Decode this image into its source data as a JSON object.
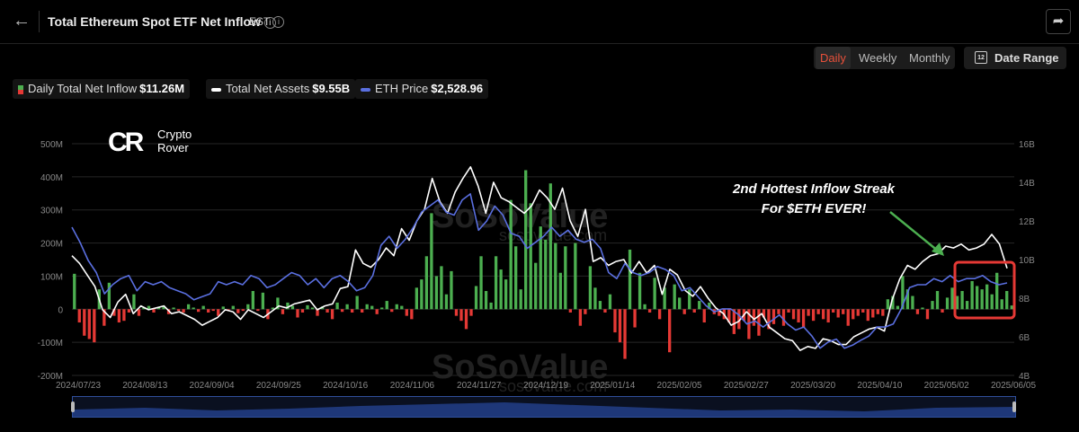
{
  "header": {
    "title": "Total Ethereum Spot ETF Net Inflow",
    "timezone": "EST",
    "back_icon": "arrow-left-icon",
    "share_icon": "share-icon"
  },
  "controls": {
    "periods": [
      "Daily",
      "Weekly",
      "Monthly"
    ],
    "active_period": "Daily",
    "date_range_label": "Date Range"
  },
  "legend": [
    {
      "label": "Daily Total Net Inflow",
      "value": "$11.26M"
    },
    {
      "label": "Total Net Assets",
      "value": "$9.55B"
    },
    {
      "label": "ETH Price",
      "value": "$2,528.96"
    }
  ],
  "logo": {
    "line1": "Crypto",
    "line2": "Rover"
  },
  "watermark": {
    "brand": "SoSoValue",
    "url": "sosovalue.com"
  },
  "annotation": {
    "line1": "2nd Hottest Inflow Streak",
    "line2": "For $ETH EVER!"
  },
  "colors": {
    "inflow_positive": "#4caf50",
    "inflow_negative": "#e53935",
    "assets_line": "#ffffff",
    "price_line": "#5a6fe0",
    "highlight_box": "#e53935",
    "arrow": "#4caf50",
    "active_tab": "#e8503a"
  },
  "chart_data": {
    "type": "bar+line",
    "x_tick_labels": [
      "2024/07/23",
      "2024/08/13",
      "2024/09/04",
      "2024/09/25",
      "2024/10/16",
      "2024/11/06",
      "2024/11/27",
      "2024/12/19",
      "2025/01/14",
      "2025/02/05",
      "2025/02/27",
      "2025/03/20",
      "2025/04/10",
      "2025/05/02",
      "2025/06/05"
    ],
    "y_left_ticks": [
      "500M",
      "400M",
      "300M",
      "200M",
      "100M",
      "0",
      "-100M",
      "-200M"
    ],
    "y_left_range": [
      -200,
      500
    ],
    "y_right_ticks": [
      "16B",
      "14B",
      "12B",
      "10B",
      "8B",
      "6B",
      "4B"
    ],
    "y_right_range": [
      4,
      16
    ],
    "series": [
      {
        "name": "Daily Total Net Inflow",
        "type": "bar",
        "unit": "M USD",
        "values": [
          107,
          -40,
          -80,
          -90,
          -100,
          60,
          -50,
          80,
          -20,
          -40,
          -35,
          -10,
          45,
          -20,
          5,
          10,
          -10,
          5,
          10,
          -15,
          5,
          -5,
          -10,
          15,
          5,
          -8,
          10,
          -10,
          -5,
          -20,
          8,
          -5,
          10,
          -12,
          -5,
          15,
          55,
          -5,
          50,
          -30,
          5,
          35,
          -15,
          20,
          10,
          -25,
          -10,
          12,
          5,
          -20,
          8,
          -10,
          -30,
          20,
          -8,
          15,
          -10,
          40,
          -10,
          15,
          10,
          -15,
          5,
          25,
          -8,
          15,
          10,
          -20,
          -30,
          65,
          90,
          160,
          290,
          100,
          130,
          45,
          115,
          -20,
          -35,
          -60,
          -20,
          70,
          160,
          55,
          20,
          160,
          120,
          90,
          330,
          190,
          60,
          420,
          320,
          140,
          250,
          210,
          380,
          200,
          110,
          190,
          -10,
          200,
          -50,
          -15,
          130,
          65,
          25,
          -10,
          45,
          -70,
          -100,
          -150,
          180,
          -55,
          110,
          15,
          -10,
          95,
          -30,
          65,
          -130,
          75,
          35,
          -15,
          60,
          -10,
          25,
          -40,
          20,
          -15,
          -20,
          -30,
          -40,
          -75,
          -60,
          -35,
          -90,
          -50,
          -80,
          -25,
          -60,
          -45,
          -15,
          -50,
          -10,
          -30,
          -40,
          -55,
          -20,
          -35,
          -15,
          -30,
          -40,
          -10,
          -25,
          -15,
          -50,
          -30,
          -20,
          -10,
          -35,
          -25,
          -15,
          -20,
          30,
          40,
          10,
          100,
          60,
          40,
          -15,
          5,
          -30,
          25,
          55,
          -10,
          35,
          65,
          40,
          55,
          25,
          85,
          70,
          60,
          75,
          45,
          110,
          30,
          55,
          11.26
        ]
      },
      {
        "name": "Total Net Assets",
        "type": "line",
        "unit": "B USD",
        "values": [
          10.2,
          9.8,
          9.2,
          8.6,
          7.4,
          7.0,
          7.8,
          8.2,
          7.2,
          7.6,
          7.4,
          7.5,
          7.6,
          7.2,
          7.3,
          7.1,
          6.9,
          6.6,
          6.8,
          7.0,
          7.4,
          7.3,
          6.9,
          7.4,
          7.2,
          7.0,
          7.3,
          7.6,
          7.5,
          7.7,
          7.8,
          7.9,
          7.4,
          7.6,
          7.7,
          8.5,
          8.6,
          10.5,
          9.8,
          9.6,
          10.0,
          10.6,
          10.2,
          11.6,
          11.0,
          12.0,
          12.6,
          14.2,
          13.0,
          12.4,
          13.5,
          14.2,
          14.8,
          13.8,
          12.4,
          14.0,
          13.2,
          13.0,
          12.7,
          12.4,
          12.8,
          13.6,
          13.2,
          12.6,
          13.7,
          12.0,
          11.2,
          12.6,
          9.9,
          10.1,
          9.7,
          9.9,
          10.0,
          9.3,
          9.9,
          9.3,
          9.7,
          8.2,
          9.5,
          9.2,
          8.4,
          8.1,
          8.6,
          8.0,
          7.5,
          7.2,
          6.6,
          6.8,
          7.3,
          6.9,
          7.2,
          6.5,
          6.2,
          5.9,
          5.8,
          5.3,
          5.5,
          5.4,
          5.9,
          5.8,
          5.6,
          5.6,
          6.0,
          6.2,
          6.4,
          6.5,
          6.3,
          7.9,
          9.0,
          9.7,
          9.5,
          9.9,
          10.2,
          10.3,
          10.7,
          10.6,
          10.8,
          10.5,
          10.6,
          10.8,
          11.3,
          10.8,
          9.55
        ]
      },
      {
        "name": "ETH Price",
        "type": "line",
        "unit": "USD",
        "values": [
          3450,
          3200,
          2900,
          2700,
          2350,
          2500,
          2600,
          2650,
          2400,
          2550,
          2500,
          2550,
          2450,
          2400,
          2350,
          2250,
          2300,
          2350,
          2550,
          2500,
          2550,
          2500,
          2650,
          2600,
          2450,
          2500,
          2600,
          2700,
          2650,
          2500,
          2600,
          2450,
          2600,
          2650,
          2550,
          2400,
          2450,
          2650,
          3150,
          3300,
          3100,
          3250,
          3450,
          3700,
          3800,
          3900,
          3700,
          3650,
          3900,
          4000,
          3400,
          3550,
          3800,
          3650,
          3350,
          3300,
          3100,
          3200,
          3300,
          3450,
          3300,
          3400,
          3250,
          3200,
          3250,
          3100,
          2700,
          2600,
          2850,
          2700,
          2650,
          2700,
          2800,
          2750,
          2650,
          2400,
          2450,
          2300,
          2150,
          2050,
          2100,
          2100,
          2000,
          1850,
          1900,
          1800,
          1900,
          2000,
          1850,
          1750,
          1800,
          1650,
          1450,
          1550,
          1600,
          1450,
          1500,
          1580,
          1650,
          1800,
          1800,
          1850,
          2100,
          2450,
          2500,
          2500,
          2600,
          2550,
          2650,
          2550,
          2600,
          2600,
          2650,
          2550,
          2500,
          2528.96
        ]
      }
    ]
  }
}
